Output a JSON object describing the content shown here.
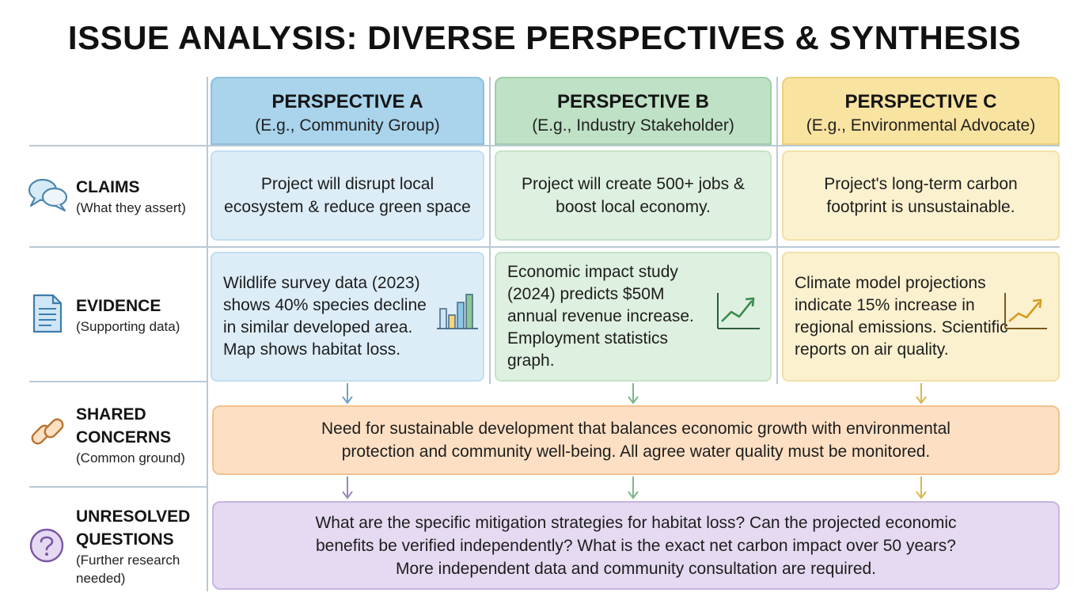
{
  "title": "ISSUE ANALYSIS: DIVERSE PERSPECTIVES & SYNTHESIS",
  "perspectives": [
    {
      "title": "PERSPECTIVE A",
      "subtitle": "(E.g., Community Group)",
      "color": "#a9d4ec",
      "claim": "Project will disrupt local ecosystem & reduce green space",
      "evidence": "Wildlife survey data (2023) shows 40% species decline in similar developed area. Map shows habitat loss.",
      "evidence_icon": "bar-chart-icon"
    },
    {
      "title": "PERSPECTIVE B",
      "subtitle": "(E.g., Industry Stakeholder)",
      "color": "#bfe1c6",
      "claim": "Project will create 500+ jobs & boost local economy.",
      "evidence": "Economic impact study (2024) predicts $50M annual revenue increase. Employment statistics graph.",
      "evidence_icon": "trend-up-chart-icon"
    },
    {
      "title": "PERSPECTIVE C",
      "subtitle": "(E.g., Environmental Advocate)",
      "color": "#f8e3a0",
      "claim": "Project's long-term carbon footprint is unsustainable.",
      "evidence": "Climate model projections indicate 15% increase in regional emissions. Scientific reports on air quality.",
      "evidence_icon": "trend-up-chart-icon"
    }
  ],
  "rows": {
    "claims": {
      "label": "CLAIMS",
      "sub": "(What they assert)",
      "icon": "speech-bubbles-icon"
    },
    "evidence": {
      "label": "EVIDENCE",
      "sub": "(Supporting data)",
      "icon": "document-icon"
    },
    "shared": {
      "label_line1": "SHARED",
      "label_line2": "CONCERNS",
      "sub": "(Common ground)",
      "icon": "chain-link-icon"
    },
    "unresolved": {
      "label_line1": "UNRESOLVED",
      "label_line2": "QUESTIONS",
      "sub_line1": "(Further research",
      "sub_line2": "needed)",
      "icon": "question-mark-icon"
    }
  },
  "shared_concerns": {
    "line1": "Need for sustainable development that balances economic growth with environmental",
    "line2": "protection and community well-being. All agree water quality must be monitored."
  },
  "unresolved_questions": {
    "line1": "What are the specific mitigation strategies for habitat loss? Can the projected economic",
    "line2": "benefits be verified independently? What is the exact net carbon impact over 50 years?",
    "line3": "More independent data and community consultation are required."
  },
  "colors": {
    "shared": "#fde0c4",
    "unresolved": "#e5daf1",
    "grid": "#b9c9d6"
  }
}
